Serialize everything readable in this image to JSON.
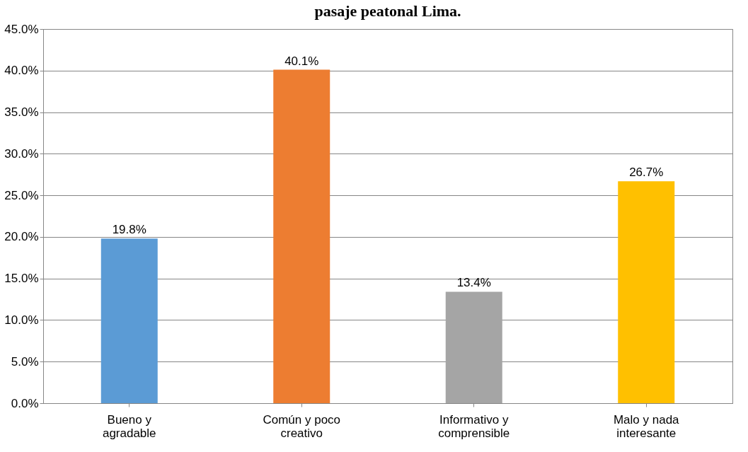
{
  "chart_data": {
    "type": "bar",
    "title": "pasaje peatonal Lima.",
    "categories": [
      "Bueno y\nagradable",
      "Común y poco\ncreativo",
      "Informativo y\ncomprensible",
      "Malo y nada\ninteresante"
    ],
    "values": [
      19.8,
      40.1,
      13.4,
      26.7
    ],
    "colors": [
      "#5b9bd5",
      "#ed7d31",
      "#a5a5a5",
      "#ffc000"
    ],
    "value_labels": [
      "19.8%",
      "40.1%",
      "13.4%",
      "26.7%"
    ],
    "ylim": [
      0,
      45
    ],
    "yticks": [
      {
        "value": 0,
        "label": "0.0%"
      },
      {
        "value": 5,
        "label": "5.0%"
      },
      {
        "value": 10,
        "label": "10.0%"
      },
      {
        "value": 15,
        "label": "15.0%"
      },
      {
        "value": 20,
        "label": "20.0%"
      },
      {
        "value": 25,
        "label": "25.0%"
      },
      {
        "value": 30,
        "label": "30.0%"
      },
      {
        "value": 35,
        "label": "35.0%"
      },
      {
        "value": 40,
        "label": "40.0%"
      },
      {
        "value": 45,
        "label": "45.0%"
      }
    ],
    "grid": "y"
  }
}
